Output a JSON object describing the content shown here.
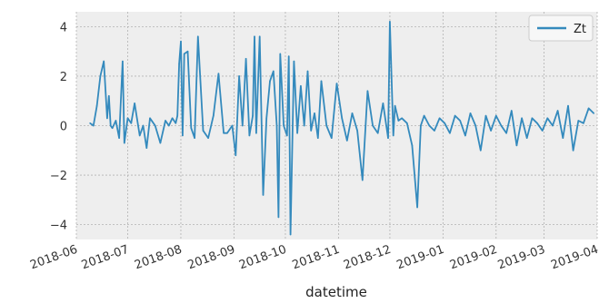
{
  "chart_data": {
    "type": "line",
    "xlabel": "datetime",
    "ylabel": "",
    "title": "",
    "ylim": [
      -4.6,
      4.6
    ],
    "xlim": [
      "2018-06-01",
      "2019-04-01"
    ],
    "grid": true,
    "legend_position": "top-right",
    "y_ticks": [
      -4,
      -2,
      0,
      2,
      4
    ],
    "y_tick_labels": [
      "−4",
      "−2",
      "0",
      "2",
      "4"
    ],
    "x_ticks": [
      "2018-06-01",
      "2018-07-01",
      "2018-08-01",
      "2018-09-01",
      "2018-10-01",
      "2018-11-01",
      "2018-12-01",
      "2019-01-01",
      "2019-02-01",
      "2019-03-01",
      "2019-04-01"
    ],
    "x_tick_labels": [
      "2018-06",
      "2018-07",
      "2018-08",
      "2018-09",
      "2018-10",
      "2018-11",
      "2018-12",
      "2019-01",
      "2019-02",
      "2019-03",
      "2019-04"
    ],
    "series": [
      {
        "name": "Zt",
        "color": "#348abd",
        "x": [
          "2018-06-09",
          "2018-06-11",
          "2018-06-13",
          "2018-06-15",
          "2018-06-17",
          "2018-06-19",
          "2018-06-20",
          "2018-06-21",
          "2018-06-22",
          "2018-06-24",
          "2018-06-26",
          "2018-06-28",
          "2018-06-29",
          "2018-07-01",
          "2018-07-03",
          "2018-07-05",
          "2018-07-08",
          "2018-07-10",
          "2018-07-12",
          "2018-07-14",
          "2018-07-17",
          "2018-07-20",
          "2018-07-23",
          "2018-07-25",
          "2018-07-27",
          "2018-07-29",
          "2018-07-30",
          "2018-07-31",
          "2018-08-01",
          "2018-08-02",
          "2018-08-03",
          "2018-08-05",
          "2018-08-07",
          "2018-08-09",
          "2018-08-11",
          "2018-08-14",
          "2018-08-17",
          "2018-08-20",
          "2018-08-23",
          "2018-08-26",
          "2018-08-28",
          "2018-08-31",
          "2018-09-02",
          "2018-09-04",
          "2018-09-06",
          "2018-09-08",
          "2018-09-10",
          "2018-09-12",
          "2018-09-13",
          "2018-09-14",
          "2018-09-16",
          "2018-09-18",
          "2018-09-20",
          "2018-09-22",
          "2018-09-24",
          "2018-09-26",
          "2018-09-27",
          "2018-09-28",
          "2018-09-30",
          "2018-10-02",
          "2018-10-03",
          "2018-10-04",
          "2018-10-06",
          "2018-10-08",
          "2018-10-10",
          "2018-10-12",
          "2018-10-14",
          "2018-10-16",
          "2018-10-18",
          "2018-10-20",
          "2018-10-22",
          "2018-10-25",
          "2018-10-28",
          "2018-10-31",
          "2018-11-03",
          "2018-11-06",
          "2018-11-09",
          "2018-11-12",
          "2018-11-15",
          "2018-11-18",
          "2018-11-21",
          "2018-11-24",
          "2018-11-27",
          "2018-11-30",
          "2018-12-01",
          "2018-12-03",
          "2018-12-04",
          "2018-12-06",
          "2018-12-08",
          "2018-12-11",
          "2018-12-14",
          "2018-12-17",
          "2018-12-19",
          "2018-12-21",
          "2018-12-24",
          "2018-12-27",
          "2018-12-30",
          "2019-01-02",
          "2019-01-05",
          "2019-01-08",
          "2019-01-11",
          "2019-01-14",
          "2019-01-17",
          "2019-01-20",
          "2019-01-23",
          "2019-01-26",
          "2019-01-29",
          "2019-02-01",
          "2019-02-04",
          "2019-02-07",
          "2019-02-10",
          "2019-02-13",
          "2019-02-16",
          "2019-02-19",
          "2019-02-22",
          "2019-02-25",
          "2019-02-28",
          "2019-03-03",
          "2019-03-06",
          "2019-03-09",
          "2019-03-12",
          "2019-03-15",
          "2019-03-18",
          "2019-03-21",
          "2019-03-24",
          "2019-03-27",
          "2019-03-30"
        ],
        "y": [
          0.1,
          0.0,
          0.8,
          2.0,
          2.6,
          0.3,
          1.2,
          0.0,
          -0.1,
          0.2,
          -0.5,
          2.6,
          -0.7,
          0.3,
          0.1,
          0.9,
          -0.4,
          0.0,
          -0.9,
          0.3,
          0.0,
          -0.7,
          0.2,
          0.0,
          0.3,
          0.1,
          0.4,
          2.5,
          3.4,
          -0.4,
          2.9,
          3.0,
          -0.1,
          -0.5,
          3.6,
          -0.2,
          -0.5,
          0.4,
          2.1,
          -0.3,
          -0.3,
          0.0,
          -1.2,
          2.0,
          0.0,
          2.7,
          -0.4,
          0.4,
          3.6,
          -0.3,
          3.6,
          -2.8,
          0.3,
          1.8,
          2.2,
          0.0,
          -3.7,
          2.9,
          0.0,
          -0.4,
          2.8,
          -4.4,
          2.6,
          -0.3,
          1.6,
          0.0,
          2.2,
          -0.2,
          0.5,
          -0.5,
          1.8,
          0.0,
          -0.5,
          1.7,
          0.3,
          -0.6,
          0.5,
          -0.2,
          -2.2,
          1.4,
          0.0,
          -0.3,
          0.9,
          -0.5,
          4.2,
          -0.4,
          0.8,
          0.2,
          0.3,
          0.1,
          -0.8,
          -3.3,
          0.0,
          0.4,
          0.0,
          -0.2,
          0.3,
          0.1,
          -0.3,
          0.4,
          0.2,
          -0.4,
          0.5,
          0.0,
          -1.0,
          0.4,
          -0.2,
          0.4,
          0.0,
          -0.3,
          0.6,
          -0.8,
          0.3,
          -0.5,
          0.3,
          0.1,
          -0.2,
          0.3,
          0.0,
          0.6,
          -0.5,
          0.8,
          -1.0,
          0.2,
          0.1,
          0.7,
          0.5
        ]
      }
    ]
  }
}
